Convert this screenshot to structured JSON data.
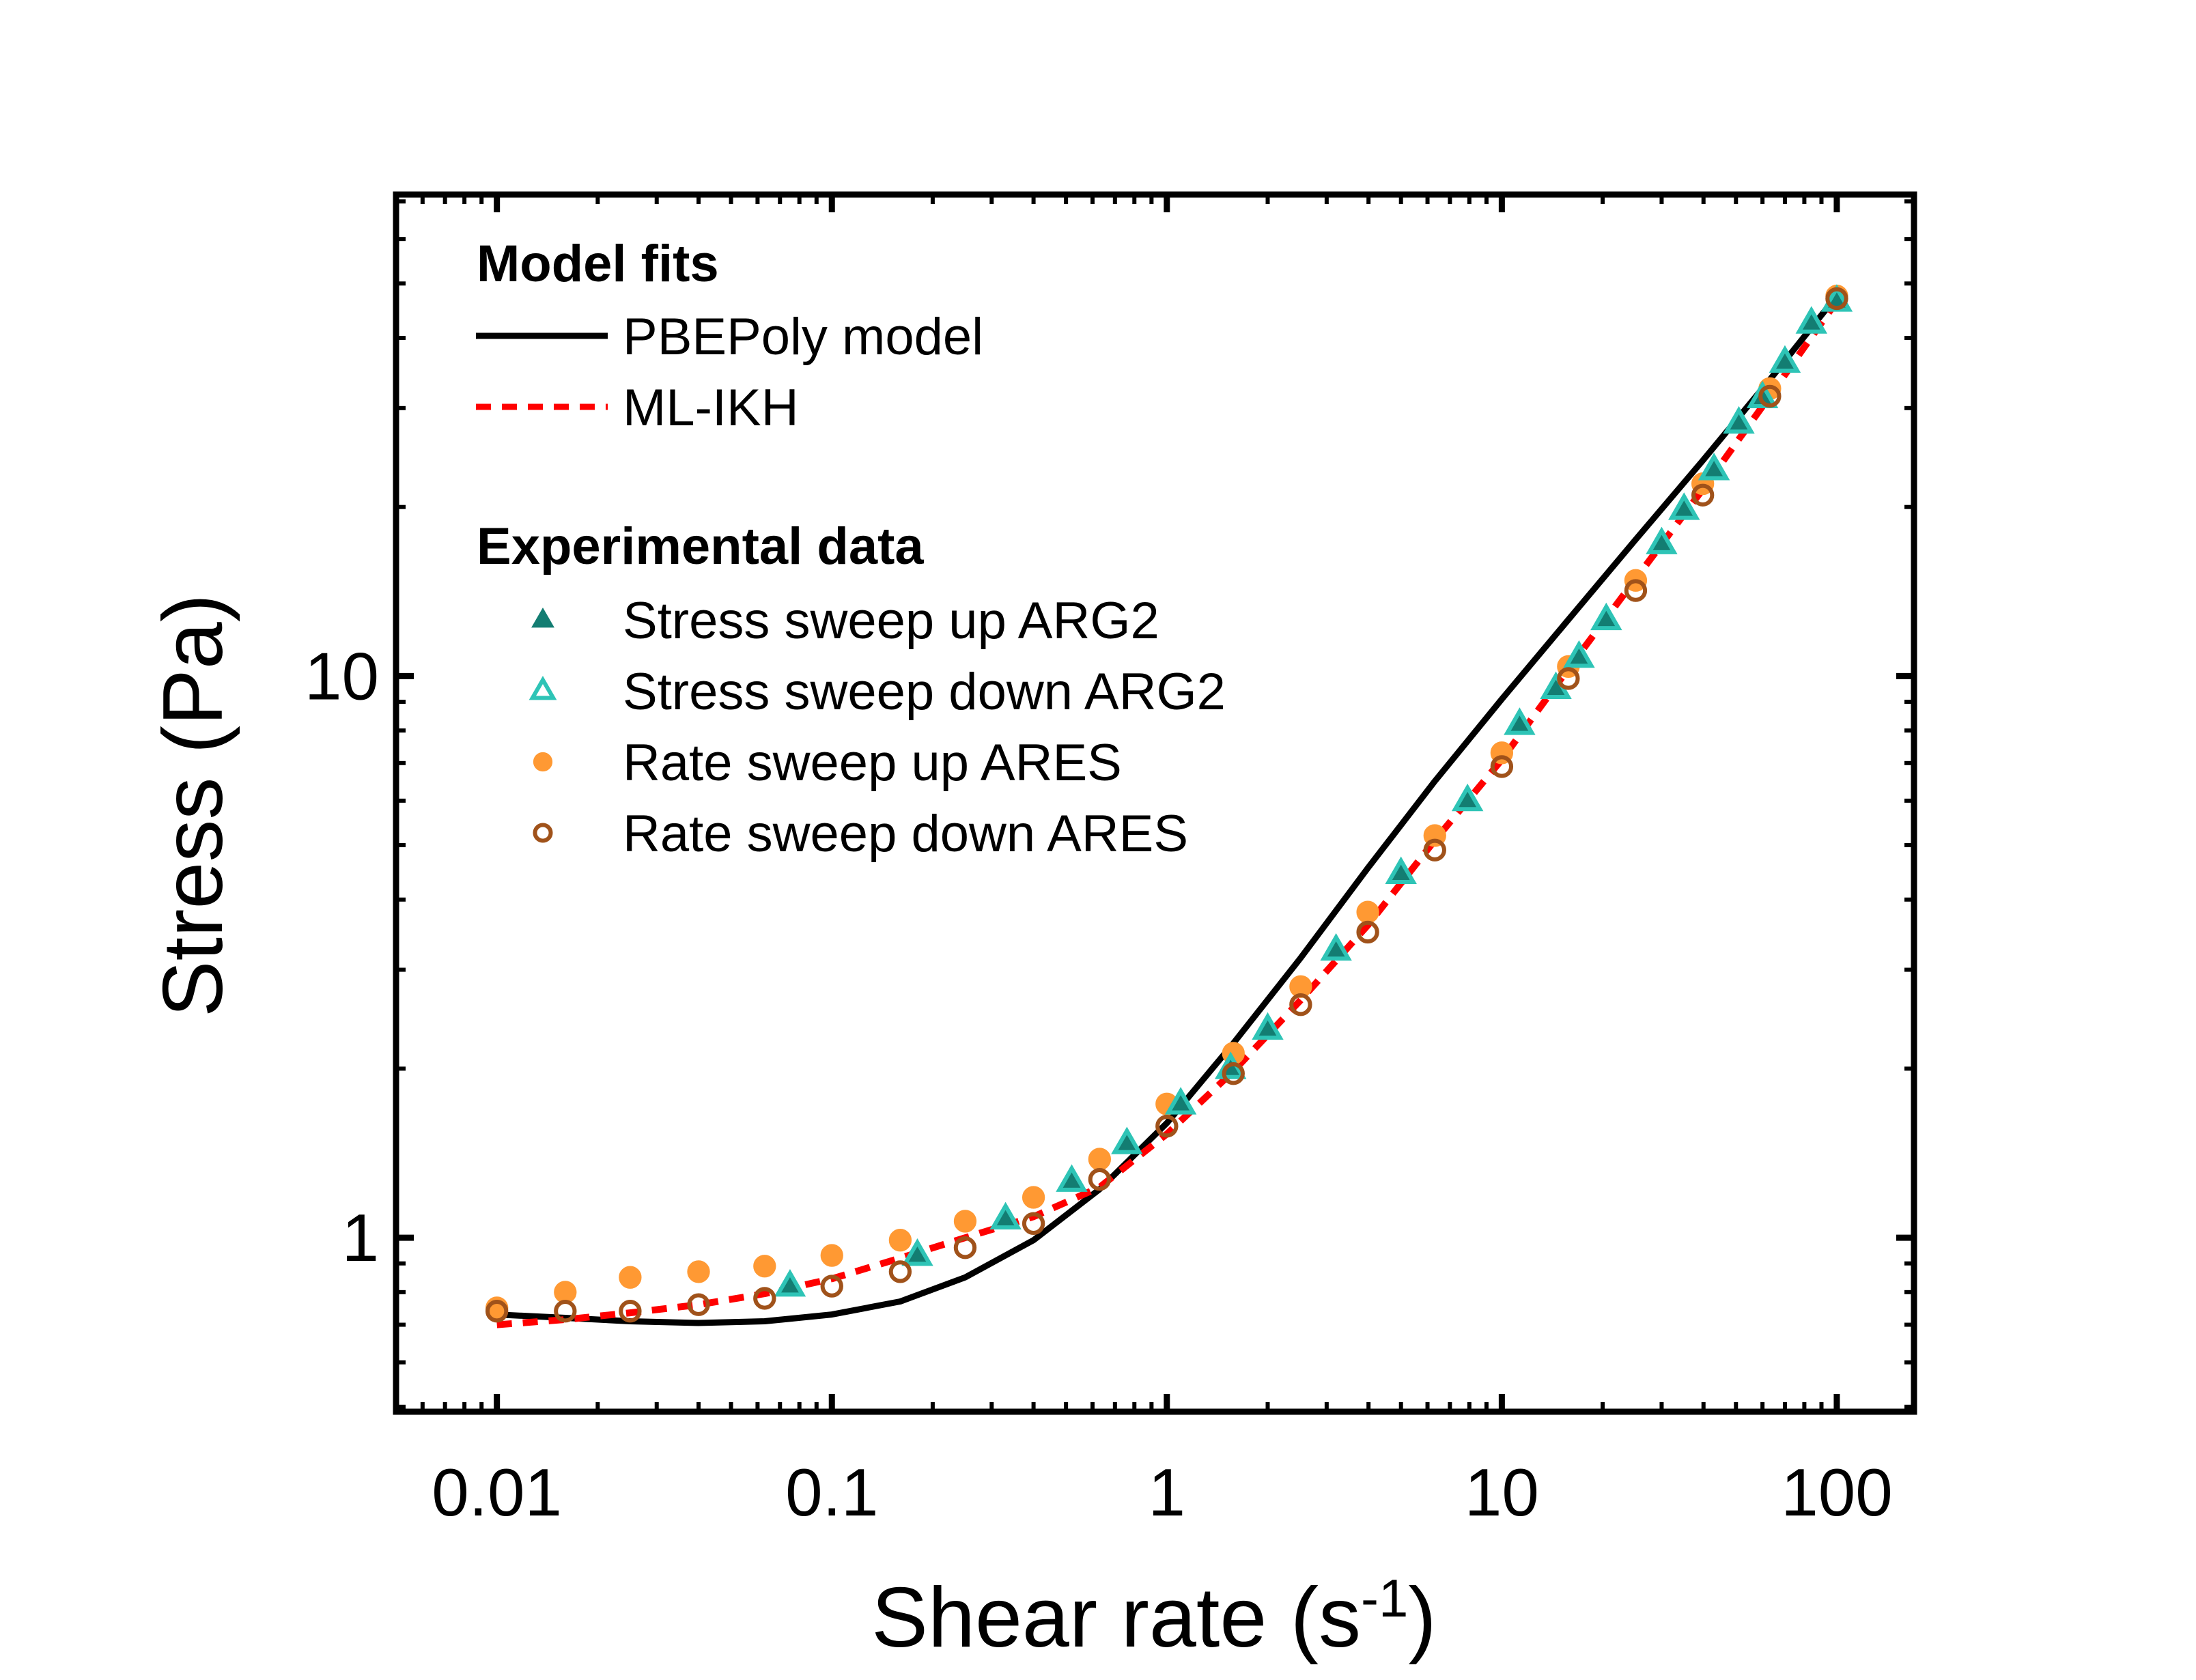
{
  "chart_data": {
    "type": "scatter",
    "x_scale": "log",
    "y_scale": "log",
    "xlim": [
      0.005,
      170
    ],
    "ylim": [
      0.49,
      72
    ],
    "xlabel": {
      "main": "Shear rate (s",
      "sup": "-1",
      "close": ")"
    },
    "ylabel": "Stress (Pa)",
    "x_ticks": [
      {
        "value": 0.01,
        "label": "0.01"
      },
      {
        "value": 0.1,
        "label": "0.1"
      },
      {
        "value": 1,
        "label": "1"
      },
      {
        "value": 10,
        "label": "10"
      },
      {
        "value": 100,
        "label": "100"
      }
    ],
    "y_ticks": [
      {
        "value": 1,
        "label": "1"
      },
      {
        "value": 10,
        "label": "10"
      }
    ],
    "legend": {
      "position": "top-left",
      "model_heading": "Model fits",
      "data_heading": "Experimental data"
    },
    "lines": [
      {
        "name": "PBEPoly model",
        "color": "#000000",
        "style": "solid",
        "points": [
          [
            0.01,
            0.73
          ],
          [
            0.016,
            0.72
          ],
          [
            0.025,
            0.71
          ],
          [
            0.04,
            0.705
          ],
          [
            0.063,
            0.71
          ],
          [
            0.1,
            0.73
          ],
          [
            0.16,
            0.77
          ],
          [
            0.25,
            0.85
          ],
          [
            0.4,
            0.99
          ],
          [
            0.63,
            1.22
          ],
          [
            1.0,
            1.6
          ],
          [
            1.58,
            2.22
          ],
          [
            2.51,
            3.15
          ],
          [
            3.98,
            4.55
          ],
          [
            6.31,
            6.5
          ],
          [
            10,
            9.1
          ],
          [
            15.8,
            12.6
          ],
          [
            25.1,
            17.5
          ],
          [
            39.8,
            24.2
          ],
          [
            63.1,
            33.7
          ],
          [
            100,
            47.5
          ]
        ]
      },
      {
        "name": "ML-IKH",
        "color": "#ff0000",
        "style": "dashed",
        "points": [
          [
            0.01,
            0.7
          ],
          [
            0.016,
            0.715
          ],
          [
            0.025,
            0.735
          ],
          [
            0.04,
            0.76
          ],
          [
            0.063,
            0.795
          ],
          [
            0.1,
            0.845
          ],
          [
            0.16,
            0.92
          ],
          [
            0.25,
            1.0
          ],
          [
            0.4,
            1.09
          ],
          [
            0.63,
            1.23
          ],
          [
            1.0,
            1.53
          ],
          [
            1.58,
            1.98
          ],
          [
            2.51,
            2.65
          ],
          [
            3.98,
            3.6
          ],
          [
            6.31,
            5.1
          ],
          [
            10,
            7.1
          ],
          [
            15.8,
            10.3
          ],
          [
            25.1,
            14.9
          ],
          [
            39.8,
            21.5
          ],
          [
            63.1,
            31.5
          ],
          [
            100,
            46.5
          ]
        ]
      }
    ],
    "series": [
      {
        "name": "Stress sweep up ARG2",
        "marker": "triangle-filled",
        "color": "#137d72",
        "points": [
          [
            0.075,
            0.82
          ],
          [
            0.18,
            0.93
          ],
          [
            0.33,
            1.08
          ],
          [
            0.52,
            1.26
          ],
          [
            0.76,
            1.47
          ],
          [
            1.1,
            1.73
          ],
          [
            1.55,
            2.0
          ],
          [
            2.0,
            2.35
          ],
          [
            3.2,
            3.25
          ],
          [
            5.0,
            4.45
          ],
          [
            7.9,
            6.0
          ],
          [
            11.3,
            8.2
          ],
          [
            14.5,
            9.5
          ],
          [
            17,
            10.8
          ],
          [
            20.5,
            12.6
          ],
          [
            30,
            17.2
          ],
          [
            35,
            19.8
          ],
          [
            43,
            23.3
          ],
          [
            51,
            28.2
          ],
          [
            60,
            31.3
          ],
          [
            70,
            36.2
          ],
          [
            84,
            42.5
          ],
          [
            100,
            46.5
          ]
        ]
      },
      {
        "name": "Stress sweep down ARG2",
        "marker": "triangle-open",
        "color": "#2ec4b6",
        "points": [
          [
            0.075,
            0.82
          ],
          [
            0.18,
            0.93
          ],
          [
            0.33,
            1.08
          ],
          [
            0.52,
            1.26
          ],
          [
            0.76,
            1.47
          ],
          [
            1.1,
            1.73
          ],
          [
            1.55,
            2.0
          ],
          [
            2.0,
            2.35
          ],
          [
            3.2,
            3.25
          ],
          [
            5.0,
            4.45
          ],
          [
            7.9,
            6.0
          ],
          [
            11.3,
            8.2
          ],
          [
            14.5,
            9.5
          ],
          [
            17,
            10.8
          ],
          [
            20.5,
            12.6
          ],
          [
            30,
            17.2
          ],
          [
            35,
            19.8
          ],
          [
            43,
            23.3
          ],
          [
            51,
            28.2
          ],
          [
            60,
            31.3
          ],
          [
            70,
            36.2
          ],
          [
            84,
            42.5
          ],
          [
            100,
            46.5
          ]
        ]
      },
      {
        "name": "Rate sweep up ARES",
        "marker": "circle-filled",
        "color": "#ff9933",
        "points": [
          [
            0.01,
            0.75
          ],
          [
            0.016,
            0.8
          ],
          [
            0.025,
            0.85
          ],
          [
            0.04,
            0.87
          ],
          [
            0.063,
            0.89
          ],
          [
            0.1,
            0.93
          ],
          [
            0.16,
            0.99
          ],
          [
            0.25,
            1.07
          ],
          [
            0.4,
            1.18
          ],
          [
            0.63,
            1.38
          ],
          [
            1.0,
            1.73
          ],
          [
            1.58,
            2.13
          ],
          [
            2.51,
            2.8
          ],
          [
            3.98,
            3.8
          ],
          [
            6.31,
            5.2
          ],
          [
            10,
            7.3
          ],
          [
            15.8,
            10.4
          ],
          [
            25.1,
            14.8
          ],
          [
            39.8,
            22.0
          ],
          [
            63.1,
            32.5
          ],
          [
            100,
            47.5
          ]
        ]
      },
      {
        "name": "Rate sweep down ARES",
        "marker": "circle-open",
        "color": "#a0521a",
        "points": [
          [
            0.01,
            0.74
          ],
          [
            0.016,
            0.74
          ],
          [
            0.025,
            0.74
          ],
          [
            0.04,
            0.76
          ],
          [
            0.063,
            0.78
          ],
          [
            0.1,
            0.82
          ],
          [
            0.16,
            0.87
          ],
          [
            0.25,
            0.96
          ],
          [
            0.4,
            1.06
          ],
          [
            0.63,
            1.27
          ],
          [
            1.0,
            1.58
          ],
          [
            1.58,
            1.96
          ],
          [
            2.51,
            2.6
          ],
          [
            3.98,
            3.5
          ],
          [
            6.31,
            4.9
          ],
          [
            10,
            6.9
          ],
          [
            15.8,
            9.9
          ],
          [
            25.1,
            14.2
          ],
          [
            39.8,
            21.0
          ],
          [
            63.1,
            31.5
          ],
          [
            100,
            47.0
          ]
        ]
      }
    ]
  }
}
